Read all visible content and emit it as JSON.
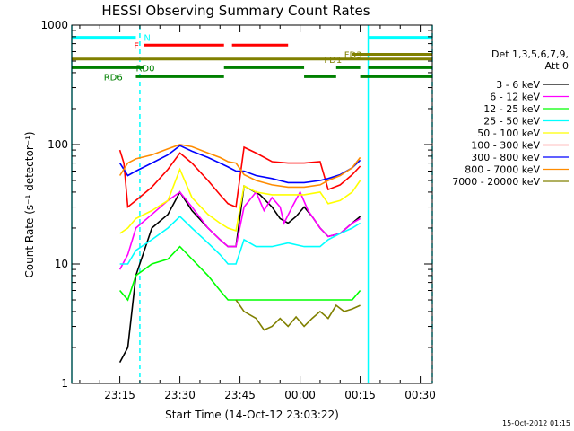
{
  "chart_data": {
    "type": "line",
    "title": "HESSI Observing Summary Count Rates",
    "xlabel": "Start Time (14-Oct-12 23:03:22)",
    "ylabel": "Count Rate (s⁻¹ detector⁻¹)",
    "y_scale": "log",
    "ylim": [
      1,
      1000
    ],
    "xlim_minutes": [
      0,
      90
    ],
    "x_ticks": [
      {
        "m": 12,
        "label": "23:15"
      },
      {
        "m": 27,
        "label": "23:30"
      },
      {
        "m": 42,
        "label": "23:45"
      },
      {
        "m": 57,
        "label": "00:00"
      },
      {
        "m": 72,
        "label": "00:15"
      },
      {
        "m": 87,
        "label": "00:30"
      }
    ],
    "y_ticks": [
      {
        "v": 1,
        "label": "1"
      },
      {
        "v": 10,
        "label": "10"
      },
      {
        "v": 100,
        "label": "100"
      },
      {
        "v": 1000,
        "label": "1000"
      }
    ],
    "legend_header": [
      "Det 1,3,5,6,7,9,",
      "Att 0"
    ],
    "legend_placement": "right",
    "series": [
      {
        "name": "3 - 6 keV",
        "color": "#000000",
        "points": [
          [
            12,
            1.5
          ],
          [
            14,
            2
          ],
          [
            16,
            8
          ],
          [
            20,
            20
          ],
          [
            24,
            26
          ],
          [
            27,
            40
          ],
          [
            30,
            28
          ],
          [
            34,
            20
          ],
          [
            37,
            16
          ],
          [
            39,
            14
          ],
          [
            41,
            14
          ],
          [
            43,
            45
          ],
          [
            47,
            38
          ],
          [
            50,
            30
          ],
          [
            52,
            24
          ],
          [
            54,
            22
          ],
          [
            56,
            25
          ],
          [
            58,
            30
          ],
          [
            60,
            25
          ],
          [
            62,
            20
          ],
          [
            64,
            17
          ],
          [
            67,
            18
          ],
          [
            70,
            22
          ],
          [
            72,
            25
          ]
        ]
      },
      {
        "name": "6 - 12 keV",
        "color": "#ff00ff",
        "points": [
          [
            12,
            9
          ],
          [
            14,
            12
          ],
          [
            16,
            20
          ],
          [
            20,
            26
          ],
          [
            24,
            34
          ],
          [
            27,
            40
          ],
          [
            30,
            30
          ],
          [
            34,
            20
          ],
          [
            37,
            16
          ],
          [
            39,
            14
          ],
          [
            41,
            14
          ],
          [
            43,
            30
          ],
          [
            46,
            40
          ],
          [
            48,
            28
          ],
          [
            50,
            36
          ],
          [
            52,
            30
          ],
          [
            53,
            22
          ],
          [
            55,
            30
          ],
          [
            57,
            40
          ],
          [
            59,
            28
          ],
          [
            62,
            20
          ],
          [
            64,
            17
          ],
          [
            67,
            18
          ],
          [
            70,
            22
          ],
          [
            72,
            24
          ]
        ]
      },
      {
        "name": "12 - 25 keV",
        "color": "#00ff00",
        "points": [
          [
            12,
            6
          ],
          [
            14,
            5
          ],
          [
            16,
            8
          ],
          [
            20,
            10
          ],
          [
            24,
            11
          ],
          [
            27,
            14
          ],
          [
            30,
            11
          ],
          [
            34,
            8
          ],
          [
            37,
            6
          ],
          [
            39,
            5
          ],
          [
            41,
            5
          ],
          [
            43,
            5
          ],
          [
            48,
            5
          ],
          [
            54,
            5
          ],
          [
            60,
            5
          ],
          [
            64,
            5
          ],
          [
            67,
            5
          ],
          [
            70,
            5
          ],
          [
            72,
            6
          ]
        ]
      },
      {
        "name": "25 - 50 keV",
        "color": "#00ffff",
        "points": [
          [
            12,
            10
          ],
          [
            14,
            10
          ],
          [
            16,
            13
          ],
          [
            20,
            16
          ],
          [
            24,
            20
          ],
          [
            27,
            25
          ],
          [
            30,
            20
          ],
          [
            34,
            15
          ],
          [
            37,
            12
          ],
          [
            39,
            10
          ],
          [
            41,
            10
          ],
          [
            43,
            16
          ],
          [
            46,
            14
          ],
          [
            50,
            14
          ],
          [
            54,
            15
          ],
          [
            58,
            14
          ],
          [
            62,
            14
          ],
          [
            64,
            16
          ],
          [
            67,
            18
          ],
          [
            70,
            20
          ],
          [
            72,
            22
          ]
        ]
      },
      {
        "name": "50 - 100 keV",
        "color": "#ffff00",
        "points": [
          [
            12,
            18
          ],
          [
            14,
            20
          ],
          [
            16,
            24
          ],
          [
            20,
            28
          ],
          [
            24,
            34
          ],
          [
            27,
            62
          ],
          [
            30,
            36
          ],
          [
            34,
            26
          ],
          [
            37,
            22
          ],
          [
            39,
            20
          ],
          [
            41,
            19
          ],
          [
            43,
            45
          ],
          [
            46,
            40
          ],
          [
            50,
            38
          ],
          [
            54,
            38
          ],
          [
            58,
            38
          ],
          [
            62,
            40
          ],
          [
            64,
            32
          ],
          [
            67,
            34
          ],
          [
            70,
            40
          ],
          [
            72,
            50
          ]
        ]
      },
      {
        "name": "100 - 300 keV",
        "color": "#ff0000",
        "points": [
          [
            12,
            90
          ],
          [
            13,
            70
          ],
          [
            14,
            30
          ],
          [
            16,
            34
          ],
          [
            20,
            44
          ],
          [
            24,
            62
          ],
          [
            27,
            85
          ],
          [
            30,
            70
          ],
          [
            34,
            50
          ],
          [
            37,
            38
          ],
          [
            39,
            32
          ],
          [
            41,
            30
          ],
          [
            43,
            95
          ],
          [
            46,
            85
          ],
          [
            50,
            72
          ],
          [
            54,
            70
          ],
          [
            58,
            70
          ],
          [
            62,
            72
          ],
          [
            64,
            42
          ],
          [
            67,
            46
          ],
          [
            70,
            56
          ],
          [
            72,
            66
          ]
        ]
      },
      {
        "name": "300 - 800 keV",
        "color": "#0000ff",
        "points": [
          [
            12,
            70
          ],
          [
            14,
            55
          ],
          [
            16,
            60
          ],
          [
            20,
            70
          ],
          [
            24,
            82
          ],
          [
            27,
            98
          ],
          [
            30,
            88
          ],
          [
            34,
            78
          ],
          [
            37,
            70
          ],
          [
            39,
            65
          ],
          [
            41,
            60
          ],
          [
            43,
            60
          ],
          [
            46,
            55
          ],
          [
            50,
            52
          ],
          [
            54,
            48
          ],
          [
            58,
            48
          ],
          [
            62,
            50
          ],
          [
            64,
            52
          ],
          [
            67,
            56
          ],
          [
            70,
            64
          ],
          [
            72,
            74
          ]
        ]
      },
      {
        "name": "800 - 7000 keV",
        "color": "#ff8c00",
        "points": [
          [
            12,
            55
          ],
          [
            14,
            70
          ],
          [
            16,
            76
          ],
          [
            20,
            82
          ],
          [
            24,
            92
          ],
          [
            27,
            100
          ],
          [
            30,
            96
          ],
          [
            34,
            85
          ],
          [
            37,
            78
          ],
          [
            39,
            72
          ],
          [
            41,
            70
          ],
          [
            43,
            56
          ],
          [
            46,
            50
          ],
          [
            50,
            46
          ],
          [
            54,
            44
          ],
          [
            58,
            44
          ],
          [
            62,
            46
          ],
          [
            64,
            50
          ],
          [
            67,
            55
          ],
          [
            70,
            64
          ],
          [
            72,
            78
          ]
        ]
      },
      {
        "name": "7000 - 20000 keV",
        "color": "#808000",
        "points": [
          [
            41,
            5
          ],
          [
            43,
            4
          ],
          [
            46,
            3.5
          ],
          [
            48,
            2.8
          ],
          [
            50,
            3
          ],
          [
            52,
            3.5
          ],
          [
            54,
            3
          ],
          [
            56,
            3.6
          ],
          [
            58,
            3
          ],
          [
            60,
            3.5
          ],
          [
            62,
            4
          ],
          [
            64,
            3.5
          ],
          [
            66,
            4.5
          ],
          [
            68,
            4
          ],
          [
            70,
            4.2
          ],
          [
            72,
            4.5
          ]
        ]
      }
    ],
    "bands": [
      {
        "label": "N",
        "color": "#00ffff",
        "segments": [
          [
            0,
            16
          ],
          [
            74,
            90
          ]
        ],
        "y": 790,
        "label_at": 18
      },
      {
        "label": "F",
        "color": "#ff0000",
        "segments": [
          [
            18,
            38
          ],
          [
            40,
            54
          ]
        ],
        "y": 680,
        "label_at": 15.5
      },
      {
        "label": "FD1",
        "color": "#808000",
        "segments": [
          [
            0,
            90
          ]
        ],
        "y": 520,
        "label_at": 63
      },
      {
        "label": "FD3",
        "color": "#808000",
        "segments": [
          [
            70,
            90
          ]
        ],
        "y": 570,
        "label_at": 68
      },
      {
        "label": "RD0",
        "color": "#008000",
        "segments": [
          [
            0,
            18
          ],
          [
            38,
            58
          ],
          [
            66,
            72
          ],
          [
            74,
            90
          ]
        ],
        "y": 440,
        "label_at": 16
      },
      {
        "label": "RD6",
        "color": "#008000",
        "segments": [
          [
            16,
            38
          ],
          [
            58,
            66
          ],
          [
            72,
            90
          ]
        ],
        "y": 370,
        "label_at": 8
      }
    ],
    "vertical_markers": [
      {
        "m": 0,
        "color": "#00ffff",
        "style": "solid"
      },
      {
        "m": 17,
        "color": "#00ffff",
        "style": "dashed"
      },
      {
        "m": 74,
        "color": "#00ffff",
        "style": "solid"
      },
      {
        "m": 90,
        "color": "#00ffff",
        "style": "dashed"
      }
    ],
    "grid": false
  },
  "footer": {
    "timestamp": "15-Oct-2012 01:15"
  }
}
